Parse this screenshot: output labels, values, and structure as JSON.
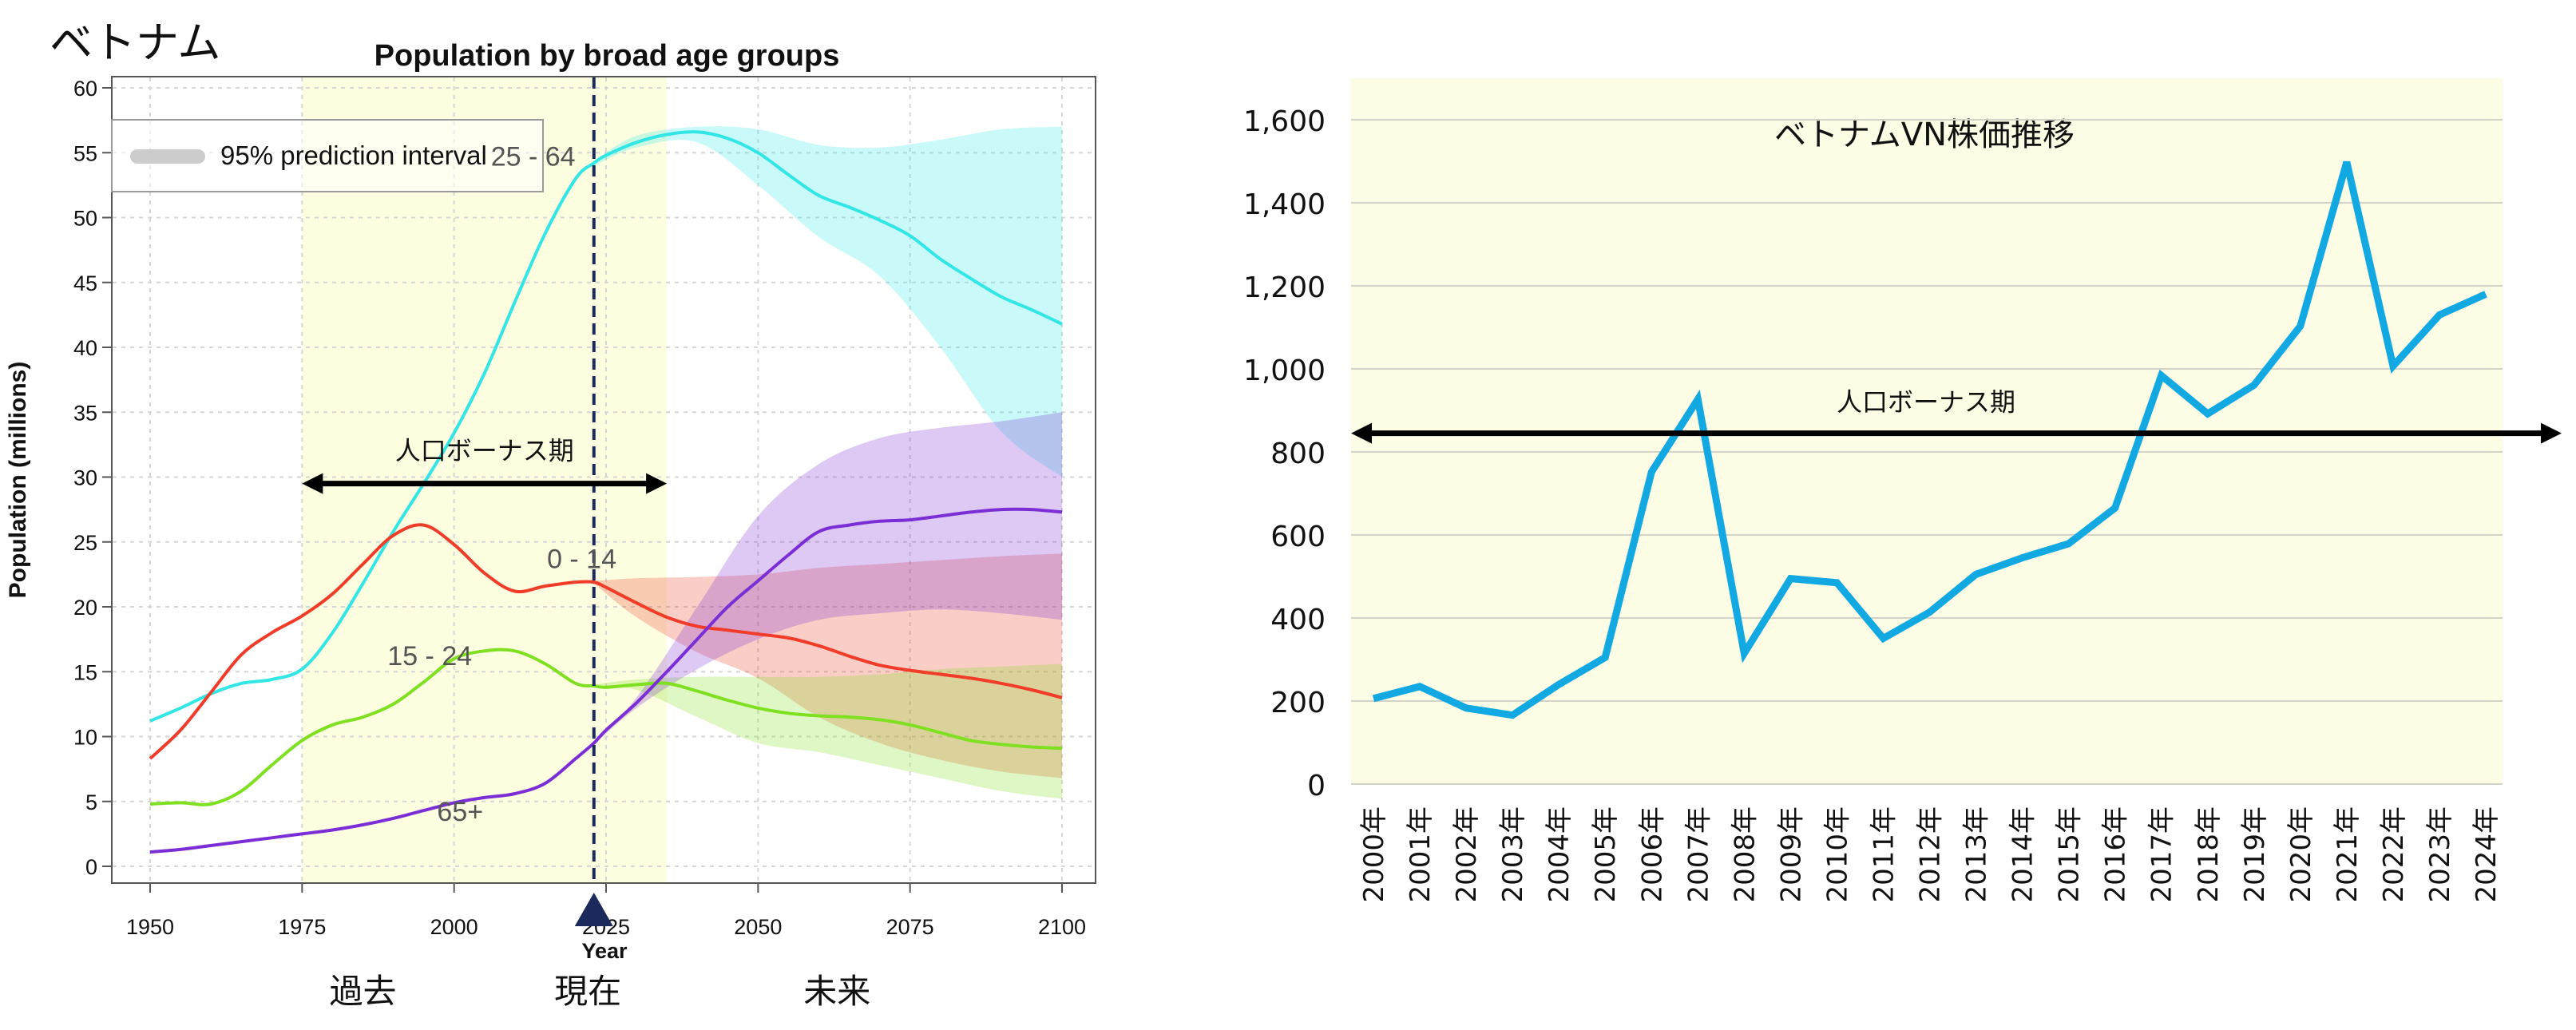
{
  "page_title": "ベトナム",
  "chart_data": [
    {
      "type": "line",
      "title": "Population by broad age groups",
      "xlabel": "Year",
      "ylabel": "Population (millions)",
      "xlim": [
        1950,
        2100
      ],
      "ylim": [
        0,
        60
      ],
      "x_ticks": [
        1950,
        1975,
        2000,
        2025,
        2050,
        2075,
        2100
      ],
      "y_ticks": [
        0,
        5,
        10,
        15,
        20,
        25,
        30,
        35,
        40,
        45,
        50,
        55,
        60
      ],
      "grid": true,
      "legend": {
        "position": "top-left",
        "entries": [
          "95% prediction interval"
        ]
      },
      "series": [
        {
          "name": "25 - 64",
          "color": "#33e6e6",
          "points": [
            [
              1950,
              11.2
            ],
            [
              1955,
              12.2
            ],
            [
              1960,
              13.3
            ],
            [
              1965,
              14.1
            ],
            [
              1970,
              14.4
            ],
            [
              1975,
              15.2
            ],
            [
              1980,
              18.0
            ],
            [
              1985,
              21.8
            ],
            [
              1990,
              25.8
            ],
            [
              1995,
              29.5
            ],
            [
              2000,
              33.4
            ],
            [
              2005,
              38.0
            ],
            [
              2010,
              43.5
            ],
            [
              2015,
              48.8
            ],
            [
              2020,
              53.0
            ],
            [
              2023,
              54.2
            ],
            [
              2025,
              54.8
            ],
            [
              2030,
              55.8
            ],
            [
              2035,
              56.4
            ],
            [
              2040,
              56.6
            ],
            [
              2045,
              56.1
            ],
            [
              2050,
              55.0
            ],
            [
              2055,
              53.3
            ],
            [
              2060,
              51.7
            ],
            [
              2065,
              50.8
            ],
            [
              2070,
              49.8
            ],
            [
              2075,
              48.6
            ],
            [
              2080,
              46.8
            ],
            [
              2085,
              45.3
            ],
            [
              2090,
              43.9
            ],
            [
              2095,
              42.9
            ],
            [
              2100,
              41.8
            ]
          ],
          "band_upper": [
            [
              2023,
              54.4
            ],
            [
              2030,
              56.3
            ],
            [
              2040,
              57.0
            ],
            [
              2050,
              56.8
            ],
            [
              2060,
              55.6
            ],
            [
              2070,
              55.4
            ],
            [
              2080,
              56.0
            ],
            [
              2090,
              56.8
            ],
            [
              2100,
              57.0
            ]
          ],
          "band_lower": [
            [
              2023,
              54.0
            ],
            [
              2030,
              55.4
            ],
            [
              2040,
              55.8
            ],
            [
              2050,
              52.5
            ],
            [
              2060,
              48.5
            ],
            [
              2070,
              45.5
            ],
            [
              2080,
              40.0
            ],
            [
              2090,
              33.5
            ],
            [
              2100,
              30.0
            ]
          ]
        },
        {
          "name": "0 - 14",
          "color": "#f03c28",
          "points": [
            [
              1950,
              8.3
            ],
            [
              1955,
              10.5
            ],
            [
              1960,
              13.4
            ],
            [
              1965,
              16.3
            ],
            [
              1970,
              18.0
            ],
            [
              1975,
              19.3
            ],
            [
              1980,
              21.0
            ],
            [
              1985,
              23.3
            ],
            [
              1990,
              25.5
            ],
            [
              1995,
              26.3
            ],
            [
              2000,
              24.8
            ],
            [
              2005,
              22.6
            ],
            [
              2010,
              21.2
            ],
            [
              2015,
              21.6
            ],
            [
              2020,
              21.9
            ],
            [
              2023,
              21.9
            ],
            [
              2025,
              21.5
            ],
            [
              2030,
              20.3
            ],
            [
              2035,
              19.2
            ],
            [
              2040,
              18.5
            ],
            [
              2045,
              18.2
            ],
            [
              2050,
              17.9
            ],
            [
              2055,
              17.6
            ],
            [
              2060,
              17.0
            ],
            [
              2065,
              16.2
            ],
            [
              2070,
              15.5
            ],
            [
              2075,
              15.1
            ],
            [
              2080,
              14.8
            ],
            [
              2085,
              14.5
            ],
            [
              2090,
              14.1
            ],
            [
              2095,
              13.6
            ],
            [
              2100,
              13.0
            ]
          ],
          "band_upper": [
            [
              2023,
              22.0
            ],
            [
              2030,
              22.2
            ],
            [
              2040,
              22.3
            ],
            [
              2050,
              22.5
            ],
            [
              2060,
              23.0
            ],
            [
              2070,
              23.3
            ],
            [
              2080,
              23.6
            ],
            [
              2090,
              23.9
            ],
            [
              2100,
              24.1
            ]
          ],
          "band_lower": [
            [
              2023,
              21.8
            ],
            [
              2030,
              19.2
            ],
            [
              2040,
              16.5
            ],
            [
              2050,
              14.5
            ],
            [
              2060,
              11.5
            ],
            [
              2070,
              9.5
            ],
            [
              2080,
              8.2
            ],
            [
              2090,
              7.3
            ],
            [
              2100,
              6.8
            ]
          ]
        },
        {
          "name": "15 - 24",
          "color": "#7ee020",
          "points": [
            [
              1950,
              4.8
            ],
            [
              1955,
              4.9
            ],
            [
              1960,
              4.8
            ],
            [
              1965,
              5.8
            ],
            [
              1970,
              7.8
            ],
            [
              1975,
              9.7
            ],
            [
              1980,
              10.9
            ],
            [
              1985,
              11.5
            ],
            [
              1990,
              12.5
            ],
            [
              1995,
              14.2
            ],
            [
              2000,
              16.0
            ],
            [
              2005,
              16.6
            ],
            [
              2010,
              16.6
            ],
            [
              2015,
              15.6
            ],
            [
              2020,
              14.1
            ],
            [
              2023,
              13.9
            ],
            [
              2025,
              13.8
            ],
            [
              2030,
              14.0
            ],
            [
              2035,
              14.1
            ],
            [
              2040,
              13.5
            ],
            [
              2045,
              12.8
            ],
            [
              2050,
              12.2
            ],
            [
              2055,
              11.8
            ],
            [
              2060,
              11.6
            ],
            [
              2065,
              11.5
            ],
            [
              2070,
              11.3
            ],
            [
              2075,
              10.9
            ],
            [
              2080,
              10.3
            ],
            [
              2085,
              9.7
            ],
            [
              2090,
              9.4
            ],
            [
              2095,
              9.2
            ],
            [
              2100,
              9.1
            ]
          ],
          "band_upper": [
            [
              2023,
              14.0
            ],
            [
              2030,
              14.4
            ],
            [
              2040,
              14.6
            ],
            [
              2050,
              14.6
            ],
            [
              2060,
              14.6
            ],
            [
              2070,
              14.8
            ],
            [
              2080,
              15.2
            ],
            [
              2090,
              15.4
            ],
            [
              2100,
              15.6
            ]
          ],
          "band_lower": [
            [
              2023,
              13.8
            ],
            [
              2030,
              13.6
            ],
            [
              2040,
              11.5
            ],
            [
              2050,
              9.5
            ],
            [
              2060,
              8.8
            ],
            [
              2070,
              7.8
            ],
            [
              2080,
              6.8
            ],
            [
              2090,
              5.8
            ],
            [
              2100,
              5.2
            ]
          ]
        },
        {
          "name": "65+",
          "color": "#7b2ed6",
          "points": [
            [
              1950,
              1.1
            ],
            [
              1955,
              1.3
            ],
            [
              1960,
              1.6
            ],
            [
              1965,
              1.9
            ],
            [
              1970,
              2.2
            ],
            [
              1975,
              2.5
            ],
            [
              1980,
              2.8
            ],
            [
              1985,
              3.2
            ],
            [
              1990,
              3.7
            ],
            [
              1995,
              4.3
            ],
            [
              2000,
              4.9
            ],
            [
              2005,
              5.3
            ],
            [
              2010,
              5.6
            ],
            [
              2015,
              6.4
            ],
            [
              2020,
              8.3
            ],
            [
              2023,
              9.5
            ],
            [
              2025,
              10.5
            ],
            [
              2030,
              12.6
            ],
            [
              2035,
              15.0
            ],
            [
              2040,
              17.5
            ],
            [
              2045,
              20.0
            ],
            [
              2050,
              22.0
            ],
            [
              2055,
              24.0
            ],
            [
              2060,
              25.8
            ],
            [
              2065,
              26.3
            ],
            [
              2070,
              26.6
            ],
            [
              2075,
              26.7
            ],
            [
              2080,
              27.0
            ],
            [
              2085,
              27.3
            ],
            [
              2090,
              27.5
            ],
            [
              2095,
              27.5
            ],
            [
              2100,
              27.3
            ]
          ],
          "band_upper": [
            [
              2023,
              9.6
            ],
            [
              2030,
              13.0
            ],
            [
              2040,
              20.0
            ],
            [
              2050,
              27.0
            ],
            [
              2060,
              31.0
            ],
            [
              2070,
              33.0
            ],
            [
              2080,
              33.8
            ],
            [
              2090,
              34.3
            ],
            [
              2100,
              35.0
            ]
          ],
          "band_lower": [
            [
              2023,
              9.4
            ],
            [
              2030,
              12.2
            ],
            [
              2040,
              15.2
            ],
            [
              2050,
              17.5
            ],
            [
              2060,
              19.0
            ],
            [
              2070,
              19.5
            ],
            [
              2080,
              19.8
            ],
            [
              2090,
              19.5
            ],
            [
              2100,
              19.0
            ]
          ]
        }
      ],
      "annotations": {
        "bonus_label": "人口ボーナス期",
        "bonus_from": 1975,
        "bonus_to": 2035,
        "bonus_y": 29.5,
        "shaded_from": 1975,
        "shaded_to": 2035,
        "current_year": 2023,
        "series_labels": [
          {
            "text": "25 - 64",
            "x": 2013,
            "y": 54
          },
          {
            "text": "0 - 14",
            "x": 2021,
            "y": 23
          },
          {
            "text": "15 - 24",
            "x": 1996,
            "y": 15.5
          },
          {
            "text": "65+",
            "x": 2001,
            "y": 3.5
          }
        ],
        "period_labels": [
          {
            "text": "過去",
            "x": 1985
          },
          {
            "text": "現在",
            "x": 2022
          },
          {
            "text": "未来",
            "x": 2063
          }
        ]
      }
    },
    {
      "type": "line",
      "title": "ベトナムVN株価推移",
      "xlabel": "",
      "ylabel": "",
      "categories": [
        "2000年",
        "2001年",
        "2002年",
        "2003年",
        "2004年",
        "2005年",
        "2006年",
        "2007年",
        "2008年",
        "2009年",
        "2010年",
        "2011年",
        "2012年",
        "2013年",
        "2014年",
        "2015年",
        "2016年",
        "2017年",
        "2018年",
        "2019年",
        "2020年",
        "2021年",
        "2022年",
        "2023年",
        "2024年"
      ],
      "values": [
        206,
        235,
        183,
        166,
        240,
        305,
        752,
        927,
        315,
        495,
        485,
        351,
        414,
        505,
        545,
        579,
        665,
        984,
        892,
        961,
        1103,
        1498,
        1007,
        1130,
        1180
      ],
      "ylim": [
        0,
        1700
      ],
      "y_ticks": [
        0,
        200,
        400,
        600,
        800,
        "1,000",
        "1,200",
        "1,400",
        "1,600"
      ],
      "grid": true,
      "series_color": "#12a9e2",
      "background": "#fdfde6",
      "annotations": {
        "bonus_label": "人口ボーナス期",
        "bonus_y": 845
      }
    }
  ]
}
